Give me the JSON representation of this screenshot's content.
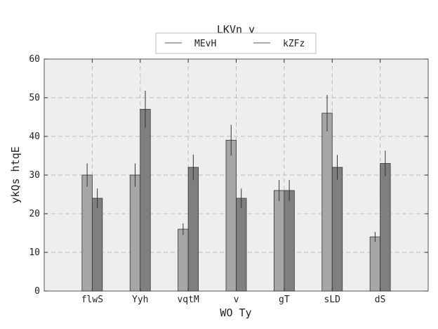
{
  "chart_data": {
    "type": "bar",
    "title": "LKVn y",
    "xlabel": "WO Ty",
    "ylabel": "ykQs htqE",
    "categories": [
      "flwS",
      "Yyh",
      "vqtM",
      "v",
      "gT",
      "sLD",
      "dS"
    ],
    "ylim": [
      0,
      60
    ],
    "yticks": [
      0,
      10,
      20,
      30,
      40,
      50,
      60
    ],
    "grid": true,
    "legend_position": "top-center",
    "series": [
      {
        "name": "MEvH",
        "color": "#a6a6a6",
        "values": [
          30,
          30,
          16,
          39,
          26,
          46,
          14
        ],
        "errors": [
          3,
          3,
          1.5,
          4,
          2.7,
          4.7,
          1.3
        ]
      },
      {
        "name": "kZFz",
        "color": "#7f7f7f",
        "values": [
          24,
          47,
          32,
          24,
          26,
          32,
          33
        ],
        "errors": [
          2.5,
          4.8,
          3.3,
          2.5,
          2.7,
          3.2,
          3.3
        ]
      }
    ]
  }
}
